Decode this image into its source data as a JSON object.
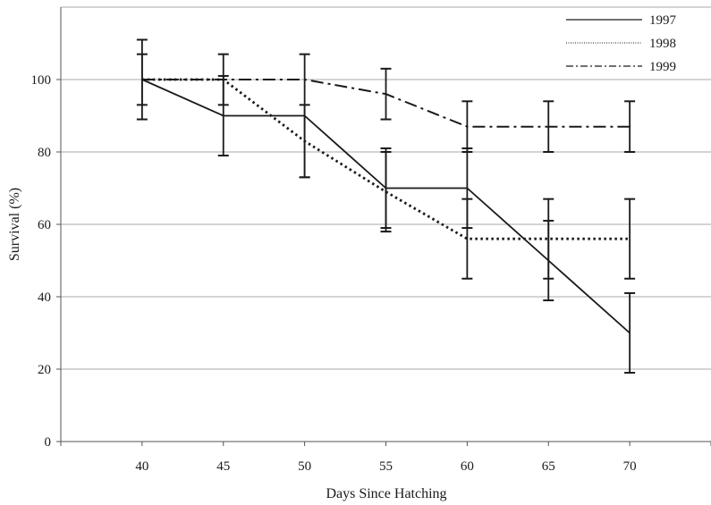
{
  "chart_data": {
    "type": "line",
    "title": "",
    "xlabel": "Days Since Hatching",
    "ylabel": "Survival (%)",
    "x": [
      40,
      45,
      50,
      55,
      60,
      65,
      70
    ],
    "xlim": [
      35,
      75
    ],
    "ylim": [
      0,
      120
    ],
    "yticks": [
      0,
      20,
      40,
      60,
      80,
      100
    ],
    "grid": "horizontal",
    "legend": "top-right",
    "series": [
      {
        "name": "1997",
        "style": "solid",
        "values": [
          100,
          90,
          90,
          70,
          70,
          50,
          30
        ],
        "error": [
          11,
          11,
          17,
          11,
          11,
          11,
          11
        ]
      },
      {
        "name": "1998",
        "style": "dotted",
        "values": [
          100,
          100,
          83,
          69,
          56,
          56,
          56
        ],
        "error": [
          7,
          7,
          10,
          11,
          11,
          11,
          11
        ]
      },
      {
        "name": "1999",
        "style": "dash-dot",
        "values": [
          100,
          100,
          100,
          96,
          87,
          87,
          87
        ],
        "error": [
          0,
          0,
          0,
          7,
          7,
          7,
          7
        ]
      }
    ]
  }
}
